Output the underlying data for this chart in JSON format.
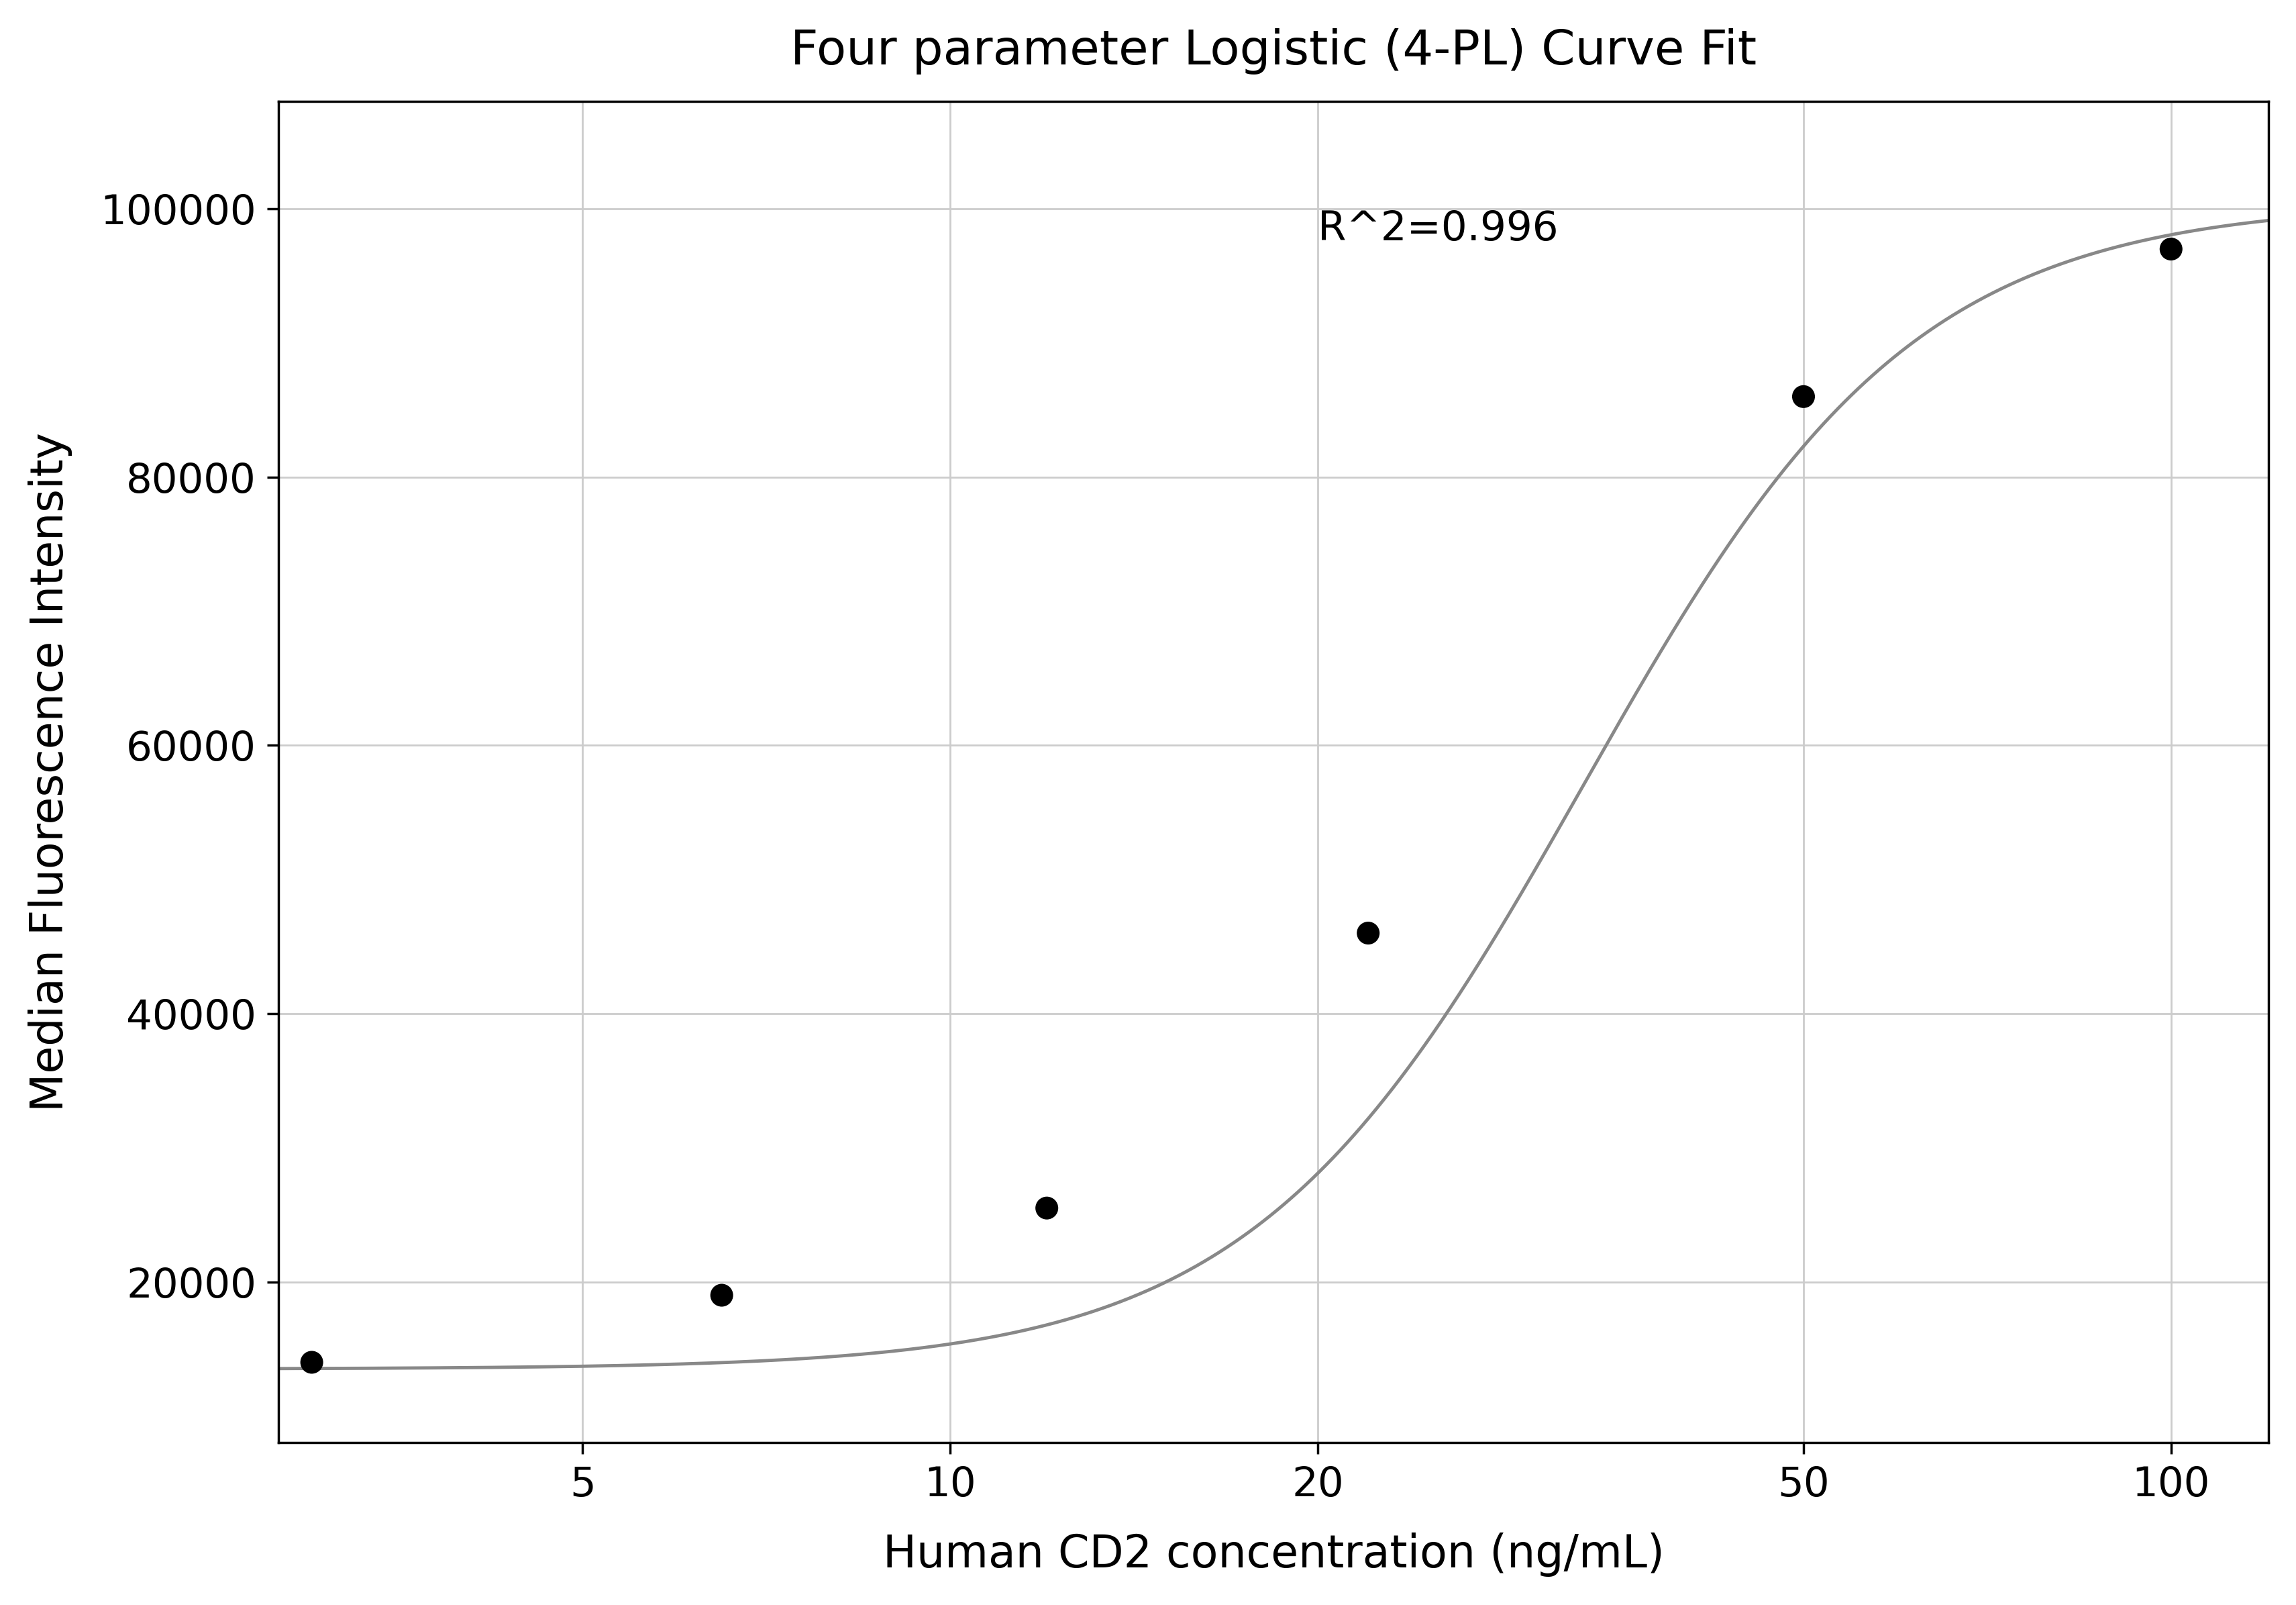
{
  "title": "Four parameter Logistic (4-PL) Curve Fit",
  "xlabel": "Human CD2 concentration (ng/mL)",
  "ylabel": "Median Fluorescence Intensity",
  "scatter_x": [
    3.0,
    6.5,
    12.0,
    22.0,
    50.0,
    100.0
  ],
  "scatter_y": [
    14000,
    19000,
    25500,
    46000,
    86000,
    97000
  ],
  "r2_text": "R^2=0.996",
  "r2_x": 20,
  "r2_y": 97000,
  "ylim": [
    8000,
    108000
  ],
  "xlim_log": [
    0.45,
    2.08
  ],
  "yticks": [
    20000,
    40000,
    60000,
    80000,
    100000
  ],
  "xticks": [
    5,
    10,
    20,
    50,
    100
  ],
  "4pl_A": 13500,
  "4pl_D": 100500,
  "4pl_C": 33.0,
  "4pl_B": 3.2,
  "curve_color": "#888888",
  "scatter_color": "#000000",
  "scatter_size": 600,
  "title_fontsize": 52,
  "label_fontsize": 48,
  "tick_fontsize": 44,
  "annotation_fontsize": 44,
  "grid_color": "#cccccc",
  "background_color": "#ffffff",
  "spine_color": "#000000"
}
